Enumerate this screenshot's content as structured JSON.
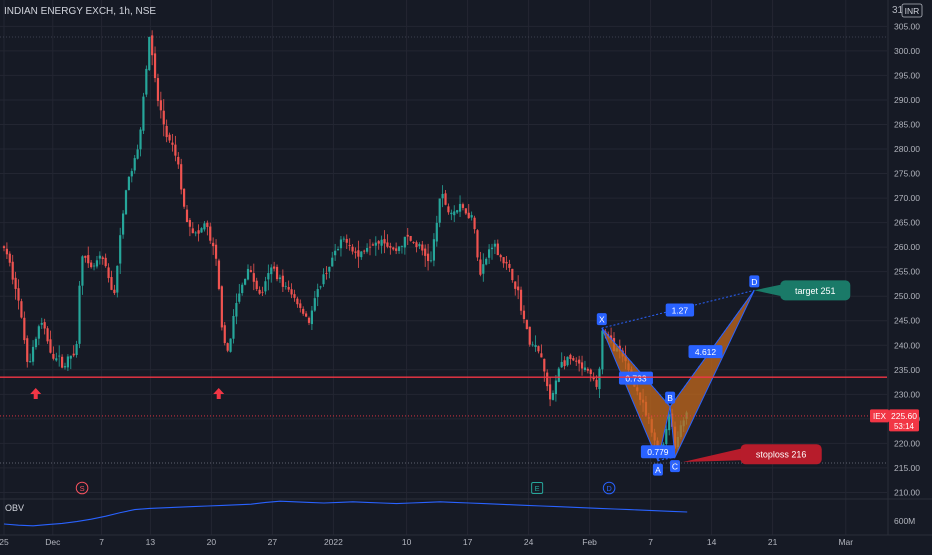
{
  "header": {
    "title": "INDIAN ENERGY EXCH, 1h, NSE",
    "currency_badge": "INR",
    "currency_badge_prefix": "31"
  },
  "colors": {
    "background": "#161a25",
    "grid": "#232632",
    "up": "#26a69a",
    "down": "#ef5350",
    "pattern_fill": "#c66a1c",
    "pattern_line": "#2962ff",
    "label_bg": "#2962ff",
    "support_line": "#f23645",
    "target_badge": "#1a7a68",
    "stop_badge": "#b71c2b",
    "price_badge": "#f23645",
    "obv_line": "#2962ff",
    "axis_text": "#b2b5be"
  },
  "chart_data": {
    "type": "candlestick",
    "title": "INDIAN ENERGY EXCH, 1h, NSE",
    "y_axis": {
      "ticks": [
        305,
        300,
        295,
        290,
        285,
        280,
        275,
        270,
        265,
        260,
        255,
        250,
        245,
        240,
        235,
        230,
        225,
        220,
        215,
        210
      ],
      "tick_labels": [
        "305.00",
        "300.00",
        "295.00",
        "290.00",
        "285.00",
        "280.00",
        "275.00",
        "270.00",
        "265.00",
        "260.00",
        "255.00",
        "250.00",
        "245.00",
        "240.00",
        "235.00",
        "230.00",
        "225.00",
        "220.00",
        "215.00",
        "210.00"
      ],
      "range": [
        205,
        312
      ]
    },
    "x_axis": {
      "tick_labels": [
        "25",
        "Dec",
        "7",
        "13",
        "20",
        "27",
        "2022",
        "10",
        "17",
        "24",
        "Feb",
        "7",
        "14",
        "21",
        "Mar"
      ],
      "tick_pos": [
        0,
        4,
        8,
        12,
        17,
        22,
        27,
        33,
        38,
        43,
        48,
        53,
        58,
        63,
        69
      ]
    },
    "price_path": [
      [
        0,
        260
      ],
      [
        1,
        252
      ],
      [
        2,
        236
      ],
      [
        3,
        245
      ],
      [
        4,
        238
      ],
      [
        5,
        236
      ],
      [
        6,
        240
      ],
      [
        6.3,
        260
      ],
      [
        7,
        255
      ],
      [
        8,
        258
      ],
      [
        9,
        250
      ],
      [
        10,
        272
      ],
      [
        11,
        280
      ],
      [
        11.9,
        303
      ],
      [
        12.6,
        290
      ],
      [
        13.4,
        282
      ],
      [
        14.2,
        278
      ],
      [
        14.8,
        267
      ],
      [
        15.8,
        262
      ],
      [
        16.5,
        265
      ],
      [
        17.4,
        257
      ],
      [
        17.8,
        246
      ],
      [
        18.2,
        237
      ],
      [
        19,
        248
      ],
      [
        20,
        256
      ],
      [
        21,
        250
      ],
      [
        22,
        256
      ],
      [
        23,
        252
      ],
      [
        24,
        249
      ],
      [
        25,
        245
      ],
      [
        26,
        253
      ],
      [
        27,
        258
      ],
      [
        28,
        262
      ],
      [
        29,
        258
      ],
      [
        30,
        261
      ],
      [
        31,
        262
      ],
      [
        32,
        259
      ],
      [
        33,
        262
      ],
      [
        34,
        260
      ],
      [
        35,
        257
      ],
      [
        35.8,
        271
      ],
      [
        36.5,
        267
      ],
      [
        37.5,
        268
      ],
      [
        38.5,
        266
      ],
      [
        39,
        254
      ],
      [
        40,
        261
      ],
      [
        41,
        257
      ],
      [
        42,
        252
      ],
      [
        43,
        241
      ],
      [
        44,
        238
      ],
      [
        44.8,
        228
      ],
      [
        45.5,
        236
      ],
      [
        46.5,
        237
      ],
      [
        47,
        236
      ],
      [
        48,
        234
      ],
      [
        48.7,
        231
      ],
      [
        49,
        243
      ],
      [
        50,
        240
      ],
      [
        51,
        236
      ],
      [
        52,
        230
      ],
      [
        53,
        223
      ],
      [
        53.7,
        217
      ],
      [
        54.2,
        222
      ],
      [
        54.6,
        227
      ],
      [
        55,
        219
      ],
      [
        55.5,
        224
      ],
      [
        56,
        227
      ]
    ],
    "support_line": {
      "price": 233.5
    },
    "current_price": {
      "price": 225.6,
      "label": "IEX",
      "value": "225.60",
      "countdown": "53:14"
    },
    "stop_level": {
      "price": 216
    },
    "harmonic_pattern": {
      "points": [
        {
          "name": "X",
          "bar": 49,
          "price": 243.5
        },
        {
          "name": "A",
          "bar": 53.6,
          "price": 216.5
        },
        {
          "name": "B",
          "bar": 54.6,
          "price": 227.5
        },
        {
          "name": "C",
          "bar": 55.0,
          "price": 217.2
        },
        {
          "name": "D",
          "bar": 61.5,
          "price": 251.2
        }
      ],
      "ratios": [
        {
          "text": "1.27",
          "bar": 55.4,
          "price": 247.2
        },
        {
          "text": "0.733",
          "bar": 51.8,
          "price": 233.3
        },
        {
          "text": "0.779",
          "bar": 53.6,
          "price": 218.3
        },
        {
          "text": "4.612",
          "bar": 57.5,
          "price": 238.7
        }
      ]
    },
    "annotations": [
      {
        "text": "target 251",
        "bar": 66.5,
        "price": 251.2,
        "kind": "target"
      },
      {
        "text": "stoploss 216",
        "bar": 63.7,
        "price": 217.8,
        "kind": "stop"
      }
    ],
    "up_arrows": [
      2.6,
      17.6
    ],
    "event_markers": [
      {
        "text": "S",
        "bar": 6.4
      },
      {
        "text": "E",
        "bar": 43.7
      },
      {
        "text": "D",
        "bar": 49.6
      }
    ],
    "obv": {
      "label": "OBV",
      "axis_label": "600M",
      "values": [
        20,
        18,
        17,
        19,
        21,
        24,
        28,
        33,
        39,
        44,
        46,
        47,
        48,
        49,
        50,
        51,
        52,
        53,
        56,
        58,
        57,
        56,
        55,
        56,
        57,
        56,
        55,
        54,
        55,
        56,
        57,
        56,
        55,
        54,
        53,
        52,
        51,
        50,
        49,
        48,
        47,
        46,
        45,
        44,
        43,
        42,
        41,
        40
      ]
    }
  }
}
